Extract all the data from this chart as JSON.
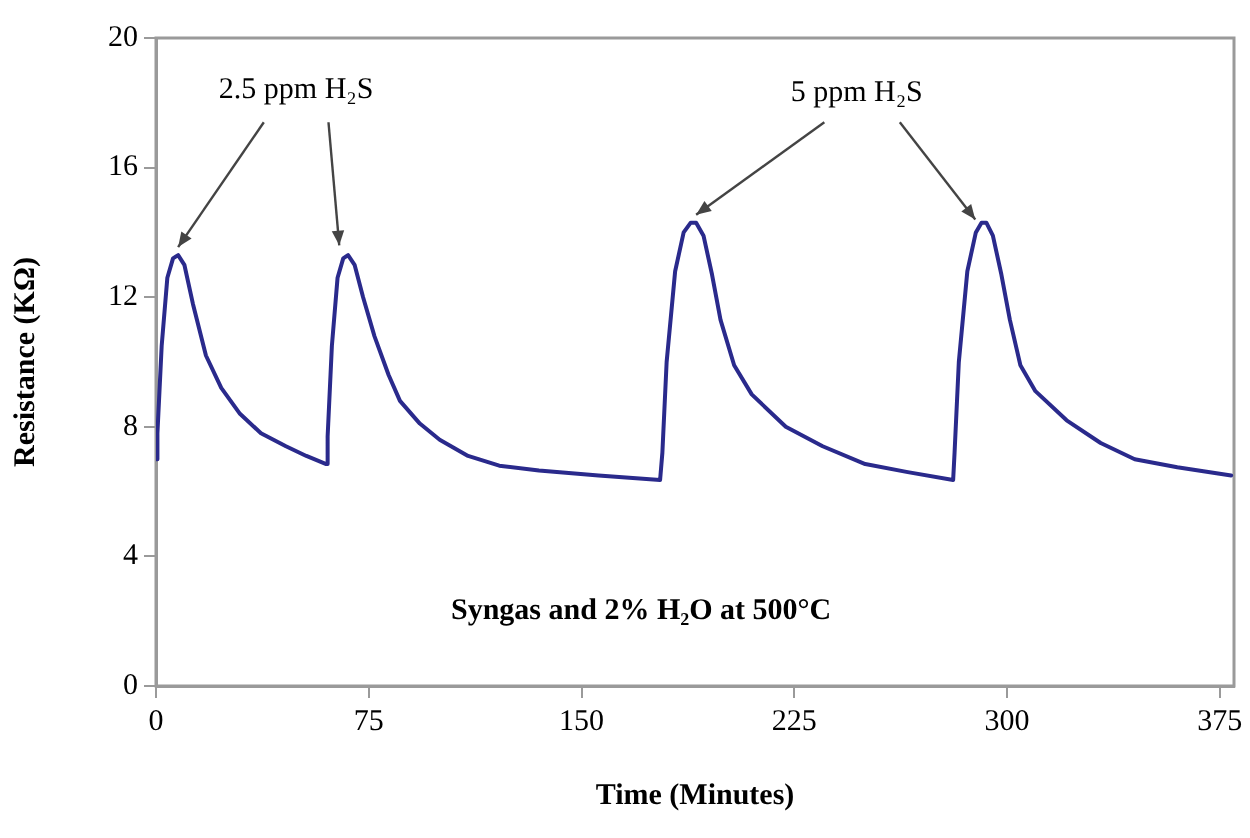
{
  "chart_data": {
    "type": "line",
    "xlabel": "Time (Minutes)",
    "ylabel": "Resistance (KΩ)",
    "xlim": [
      0,
      380
    ],
    "xticks": [
      0,
      75,
      150,
      225,
      300,
      375
    ],
    "ylim": [
      0,
      20
    ],
    "yticks": [
      0,
      4,
      8,
      12,
      16,
      20
    ],
    "grid": false,
    "legend": false,
    "marker": "none",
    "line_style": "solid",
    "annotations": [
      {
        "text": "2.5 ppm H₂S",
        "x": 7.8,
        "y": 13.3
      },
      {
        "text": "5 ppm H₂S",
        "x": 190.4,
        "y": 14.3
      },
      "Syngas and 2% H₂O at 500°C"
    ],
    "series": [
      {
        "color": "#2a2a8c",
        "x": [
          0,
          0.5,
          2,
          4,
          6,
          7.8,
          10,
          13,
          17.6,
          23,
          29.6,
          37,
          45.8,
          53,
          60,
          60.5,
          62,
          64,
          66,
          67.7,
          70,
          73,
          77,
          82,
          86,
          93,
          100,
          110,
          121,
          135,
          156,
          177.7,
          178.5,
          180,
          183,
          186,
          188.5,
          190.4,
          193,
          196,
          199,
          203.8,
          210,
          222,
          235,
          250,
          265,
          281,
          281.5,
          283,
          286,
          289,
          291,
          292.7,
          295,
          298,
          301,
          304.7,
          310,
          321,
          333,
          345,
          360,
          379
        ],
        "values": [
          7.0,
          7.8,
          10.5,
          12.6,
          13.2,
          13.3,
          13.0,
          11.8,
          10.2,
          9.2,
          8.4,
          7.8,
          7.4,
          7.1,
          6.85,
          7.7,
          10.5,
          12.6,
          13.2,
          13.3,
          13.0,
          12.0,
          10.8,
          9.6,
          8.8,
          8.1,
          7.6,
          7.1,
          6.8,
          6.65,
          6.5,
          6.36,
          7.2,
          10.0,
          12.8,
          14.0,
          14.3,
          14.3,
          13.9,
          12.7,
          11.3,
          9.9,
          9.0,
          8.0,
          7.4,
          6.85,
          6.6,
          6.36,
          7.2,
          10.0,
          12.8,
          14.0,
          14.3,
          14.3,
          13.9,
          12.7,
          11.3,
          9.9,
          9.1,
          8.2,
          7.5,
          7.0,
          6.75,
          6.5
        ]
      }
    ]
  }
}
